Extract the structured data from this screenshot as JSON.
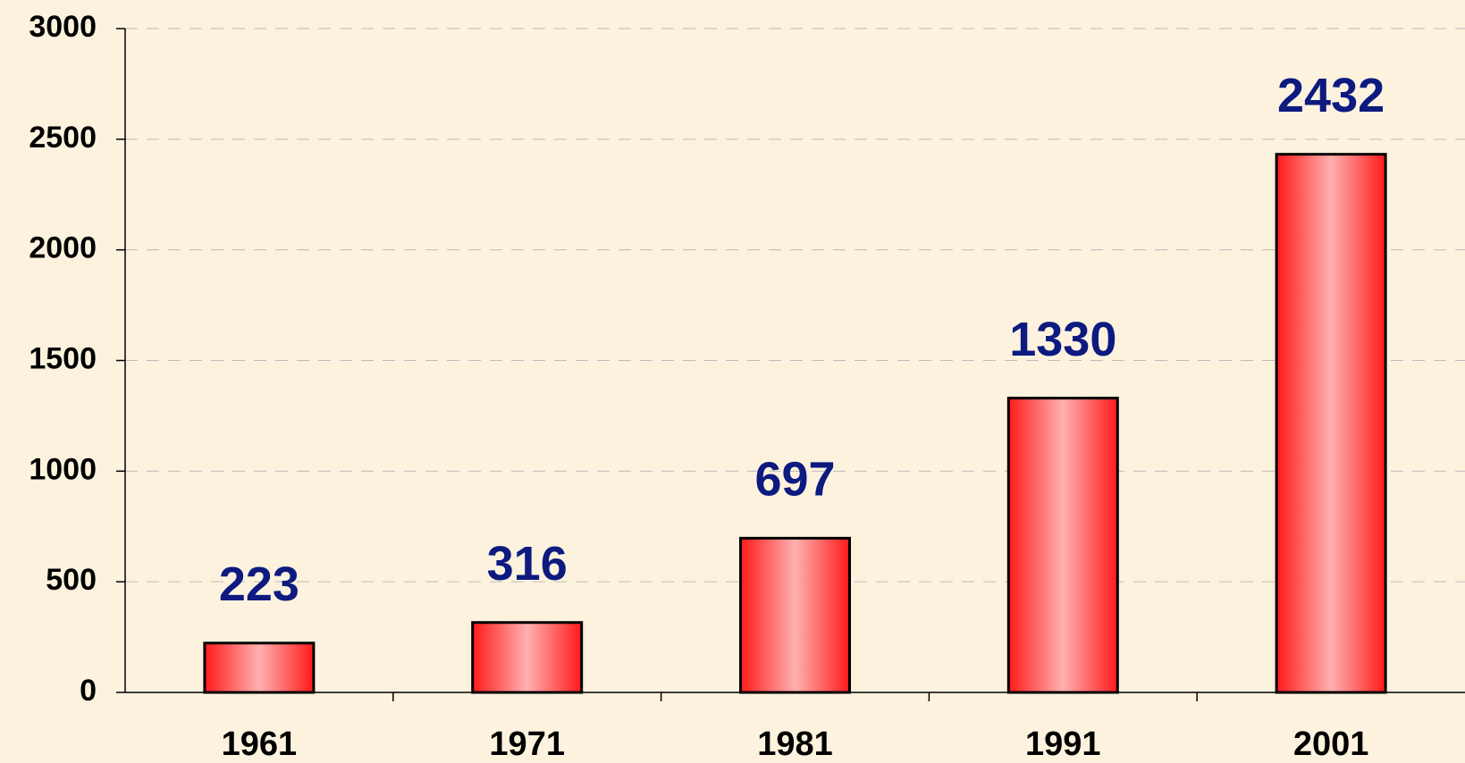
{
  "chart_data": {
    "type": "bar",
    "categories": [
      "1961",
      "1971",
      "1981",
      "1991",
      "2001"
    ],
    "values": [
      223,
      316,
      697,
      1330,
      2432
    ],
    "color": "#ff2a2a",
    "label_color": "#0d1a80",
    "ylim": [
      0,
      3000
    ],
    "yticks": [
      0,
      500,
      1000,
      1500,
      2000,
      2500,
      3000
    ],
    "grid": true
  }
}
